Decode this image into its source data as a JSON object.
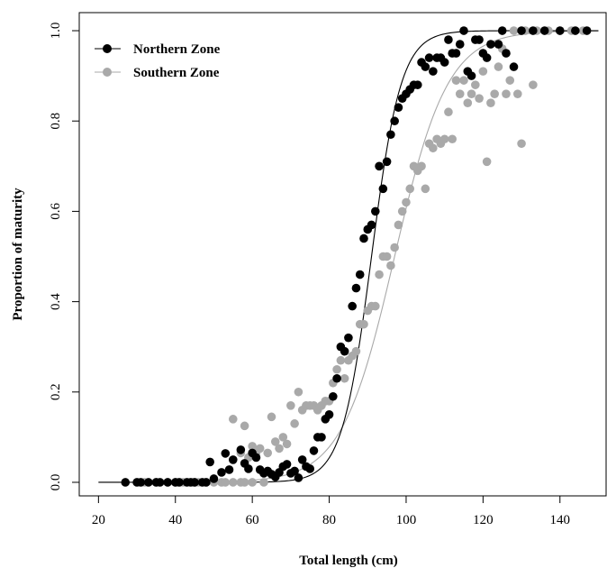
{
  "chart_data": {
    "type": "scatter",
    "xlabel": "Total length (cm)",
    "ylabel": "Proportion of maturity",
    "xlim": [
      15,
      152
    ],
    "ylim": [
      -0.03,
      1.04
    ],
    "x_ticks": [
      20,
      40,
      60,
      80,
      100,
      120,
      140
    ],
    "y_ticks": [
      0.0,
      0.2,
      0.4,
      0.6,
      0.8,
      1.0
    ],
    "x_tick_labels": [
      "20",
      "40",
      "60",
      "80",
      "100",
      "120",
      "140"
    ],
    "y_tick_labels": [
      "0.0",
      "0.2",
      "0.4",
      "0.6",
      "0.8",
      "1.0"
    ],
    "grid": false,
    "legend_position": "top-left",
    "series": [
      {
        "name": "Northern Zone",
        "color": "#000000",
        "curve": {
          "l50": 91.0,
          "slope": 0.26,
          "x_range": [
            20,
            150
          ]
        },
        "points": [
          [
            27,
            0.0
          ],
          [
            30,
            0.0
          ],
          [
            31,
            0.0
          ],
          [
            33,
            0.0
          ],
          [
            35,
            0.0
          ],
          [
            36,
            0.0
          ],
          [
            38,
            0.0
          ],
          [
            40,
            0.0
          ],
          [
            41,
            0.0
          ],
          [
            43,
            0.0
          ],
          [
            44,
            0.0
          ],
          [
            45,
            0.0
          ],
          [
            47,
            0.0
          ],
          [
            48,
            0.0
          ],
          [
            49,
            0.045
          ],
          [
            50,
            0.008
          ],
          [
            52,
            0.022
          ],
          [
            53,
            0.064
          ],
          [
            54,
            0.028
          ],
          [
            55,
            0.05
          ],
          [
            57,
            0.072
          ],
          [
            58,
            0.042
          ],
          [
            59,
            0.03
          ],
          [
            60,
            0.065
          ],
          [
            61,
            0.055
          ],
          [
            62,
            0.028
          ],
          [
            63,
            0.02
          ],
          [
            64,
            0.025
          ],
          [
            65,
            0.018
          ],
          [
            66,
            0.012
          ],
          [
            67,
            0.022
          ],
          [
            68,
            0.035
          ],
          [
            69,
            0.04
          ],
          [
            70,
            0.02
          ],
          [
            71,
            0.025
          ],
          [
            72,
            0.01
          ],
          [
            73,
            0.05
          ],
          [
            74,
            0.035
          ],
          [
            75,
            0.03
          ],
          [
            76,
            0.07
          ],
          [
            77,
            0.1
          ],
          [
            78,
            0.1
          ],
          [
            79,
            0.14
          ],
          [
            80,
            0.15
          ],
          [
            81,
            0.19
          ],
          [
            82,
            0.23
          ],
          [
            83,
            0.3
          ],
          [
            84,
            0.29
          ],
          [
            85,
            0.32
          ],
          [
            86,
            0.39
          ],
          [
            87,
            0.43
          ],
          [
            88,
            0.46
          ],
          [
            89,
            0.54
          ],
          [
            90,
            0.56
          ],
          [
            91,
            0.57
          ],
          [
            92,
            0.6
          ],
          [
            93,
            0.7
          ],
          [
            94,
            0.65
          ],
          [
            95,
            0.71
          ],
          [
            96,
            0.77
          ],
          [
            97,
            0.8
          ],
          [
            98,
            0.83
          ],
          [
            99,
            0.85
          ],
          [
            100,
            0.86
          ],
          [
            101,
            0.87
          ],
          [
            102,
            0.88
          ],
          [
            103,
            0.88
          ],
          [
            104,
            0.93
          ],
          [
            105,
            0.92
          ],
          [
            106,
            0.94
          ],
          [
            107,
            0.91
          ],
          [
            108,
            0.94
          ],
          [
            109,
            0.94
          ],
          [
            110,
            0.93
          ],
          [
            111,
            0.98
          ],
          [
            112,
            0.95
          ],
          [
            113,
            0.95
          ],
          [
            114,
            0.97
          ],
          [
            115,
            1.0
          ],
          [
            116,
            0.91
          ],
          [
            117,
            0.9
          ],
          [
            118,
            0.98
          ],
          [
            119,
            0.98
          ],
          [
            120,
            0.95
          ],
          [
            121,
            0.94
          ],
          [
            122,
            0.97
          ],
          [
            124,
            0.97
          ],
          [
            125,
            1.0
          ],
          [
            126,
            0.95
          ],
          [
            128,
            0.92
          ],
          [
            130,
            1.0
          ],
          [
            133,
            1.0
          ],
          [
            136,
            1.0
          ],
          [
            140,
            1.0
          ],
          [
            144,
            1.0
          ],
          [
            147,
            1.0
          ]
        ]
      },
      {
        "name": "Southern Zone",
        "color": "#a9a9a9",
        "curve": {
          "l50": 97.0,
          "slope": 0.145,
          "x_range": [
            20,
            150
          ]
        },
        "points": [
          [
            32,
            0.0
          ],
          [
            35,
            0.0
          ],
          [
            38,
            0.0
          ],
          [
            40,
            0.0
          ],
          [
            42,
            0.0
          ],
          [
            45,
            0.0
          ],
          [
            46,
            0.0
          ],
          [
            48,
            0.0
          ],
          [
            50,
            0.0
          ],
          [
            52,
            0.0
          ],
          [
            53,
            0.0
          ],
          [
            55,
            0.0
          ],
          [
            57,
            0.0
          ],
          [
            58,
            0.0
          ],
          [
            60,
            0.0
          ],
          [
            63,
            0.0
          ],
          [
            55,
            0.14
          ],
          [
            57,
            0.065
          ],
          [
            58,
            0.125
          ],
          [
            59,
            0.055
          ],
          [
            60,
            0.08
          ],
          [
            61,
            0.065
          ],
          [
            62,
            0.075
          ],
          [
            64,
            0.065
          ],
          [
            65,
            0.145
          ],
          [
            66,
            0.09
          ],
          [
            67,
            0.075
          ],
          [
            68,
            0.1
          ],
          [
            69,
            0.085
          ],
          [
            70,
            0.17
          ],
          [
            71,
            0.13
          ],
          [
            72,
            0.2
          ],
          [
            73,
            0.16
          ],
          [
            74,
            0.17
          ],
          [
            75,
            0.17
          ],
          [
            76,
            0.17
          ],
          [
            77,
            0.16
          ],
          [
            78,
            0.17
          ],
          [
            79,
            0.18
          ],
          [
            80,
            0.18
          ],
          [
            81,
            0.22
          ],
          [
            82,
            0.25
          ],
          [
            83,
            0.27
          ],
          [
            84,
            0.23
          ],
          [
            85,
            0.27
          ],
          [
            86,
            0.28
          ],
          [
            87,
            0.29
          ],
          [
            88,
            0.35
          ],
          [
            89,
            0.35
          ],
          [
            90,
            0.38
          ],
          [
            91,
            0.39
          ],
          [
            92,
            0.39
          ],
          [
            93,
            0.46
          ],
          [
            94,
            0.5
          ],
          [
            95,
            0.5
          ],
          [
            96,
            0.48
          ],
          [
            97,
            0.52
          ],
          [
            98,
            0.57
          ],
          [
            99,
            0.6
          ],
          [
            100,
            0.62
          ],
          [
            101,
            0.65
          ],
          [
            102,
            0.7
          ],
          [
            103,
            0.69
          ],
          [
            104,
            0.7
          ],
          [
            105,
            0.65
          ],
          [
            106,
            0.75
          ],
          [
            107,
            0.74
          ],
          [
            108,
            0.76
          ],
          [
            109,
            0.75
          ],
          [
            110,
            0.76
          ],
          [
            111,
            0.82
          ],
          [
            112,
            0.76
          ],
          [
            113,
            0.89
          ],
          [
            114,
            0.86
          ],
          [
            115,
            0.89
          ],
          [
            116,
            0.84
          ],
          [
            117,
            0.86
          ],
          [
            118,
            0.88
          ],
          [
            119,
            0.85
          ],
          [
            120,
            0.91
          ],
          [
            121,
            0.71
          ],
          [
            122,
            0.84
          ],
          [
            123,
            0.86
          ],
          [
            124,
            0.92
          ],
          [
            125,
            0.96
          ],
          [
            126,
            0.86
          ],
          [
            127,
            0.89
          ],
          [
            129,
            0.86
          ],
          [
            130,
            0.75
          ],
          [
            133,
            0.88
          ],
          [
            128,
            1.0
          ],
          [
            131,
            1.0
          ],
          [
            134,
            1.0
          ],
          [
            137,
            1.0
          ],
          [
            140,
            1.0
          ],
          [
            143,
            1.0
          ],
          [
            146,
            1.0
          ]
        ]
      }
    ]
  }
}
